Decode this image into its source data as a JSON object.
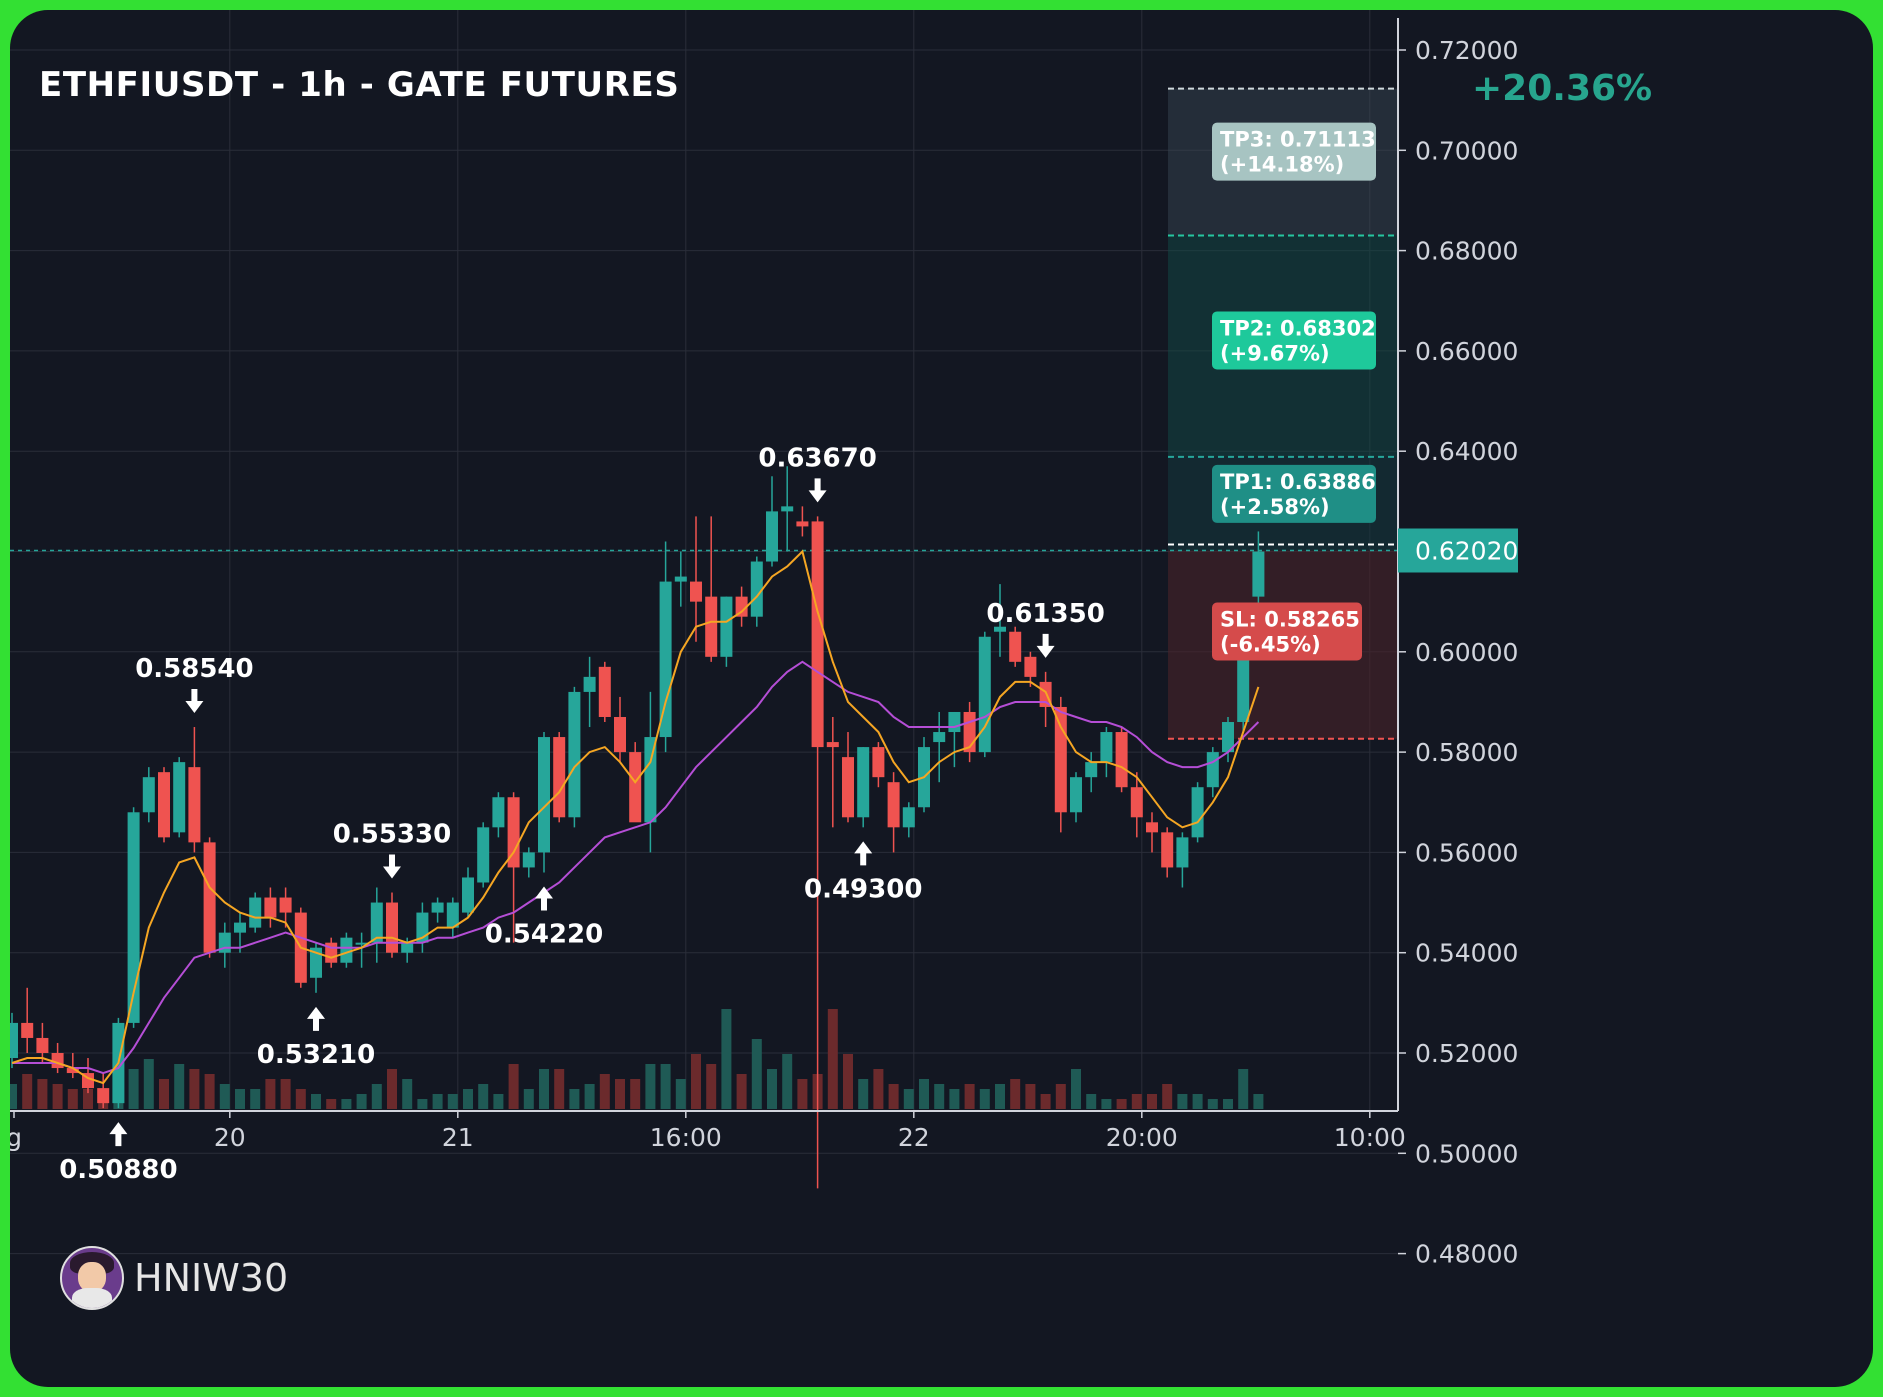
{
  "title": "ETHFIUSDT - 1h - GATE FUTURES",
  "total_gain": "+20.36%",
  "author": "HNIW30",
  "colors": {
    "background": "#131722",
    "frame": "#33e033",
    "up": "#26a69a",
    "down": "#ef5350",
    "ma_fast": "#f5a623",
    "ma_slow": "#b54ed6",
    "tp3_label": "#a7c4c2",
    "tp2_label": "#1ec99b",
    "tp1_label": "#1f8f86",
    "sl_label": "#d54b4b"
  },
  "current_price": "0.62020",
  "targets": [
    {
      "id": "tp3",
      "label": "TP3: 0.71113",
      "pct": "(+14.18%)",
      "price": 0.71113
    },
    {
      "id": "tp2",
      "label": "TP2: 0.68302",
      "pct": "(+9.67%)",
      "price": 0.68302
    },
    {
      "id": "tp1",
      "label": "TP1: 0.63886",
      "pct": "(+2.58%)",
      "price": 0.63886
    },
    {
      "id": "sl",
      "label": "SL: 0.58265",
      "pct": "(-6.45%)",
      "price": 0.58265
    }
  ],
  "chart_data": {
    "type": "candlestick",
    "title": "ETHFIUSDT - 1h - GATE FUTURES",
    "y_tick_labels": [
      "0.72000",
      "0.70000",
      "0.68000",
      "0.66000",
      "0.64000",
      "0.62000",
      "0.60000",
      "0.58000",
      "0.56000",
      "0.54000",
      "0.52000",
      "0.50000",
      "0.48000"
    ],
    "ylim": [
      0.472,
      0.726
    ],
    "x_tick_labels": [
      {
        "label": "g",
        "index": 0
      },
      {
        "label": "20",
        "index": 14
      },
      {
        "label": "21",
        "index": 29
      },
      {
        "label": "16:00",
        "index": 44
      },
      {
        "label": "22",
        "index": 59
      },
      {
        "label": "20:00",
        "index": 74
      },
      {
        "label": "10:00",
        "index": 89
      }
    ],
    "candles": [
      [
        0.519,
        0.528,
        0.517,
        0.526
      ],
      [
        0.526,
        0.533,
        0.52,
        0.523
      ],
      [
        0.523,
        0.526,
        0.518,
        0.52
      ],
      [
        0.52,
        0.522,
        0.516,
        0.517
      ],
      [
        0.517,
        0.52,
        0.515,
        0.516
      ],
      [
        0.516,
        0.519,
        0.512,
        0.513
      ],
      [
        0.513,
        0.516,
        0.509,
        0.51
      ],
      [
        0.51,
        0.527,
        0.509,
        0.526
      ],
      [
        0.526,
        0.569,
        0.525,
        0.568
      ],
      [
        0.568,
        0.577,
        0.566,
        0.575
      ],
      [
        0.576,
        0.577,
        0.562,
        0.563
      ],
      [
        0.564,
        0.579,
        0.563,
        0.578
      ],
      [
        0.577,
        0.585,
        0.56,
        0.562
      ],
      [
        0.562,
        0.563,
        0.539,
        0.54
      ],
      [
        0.54,
        0.546,
        0.537,
        0.544
      ],
      [
        0.544,
        0.548,
        0.54,
        0.546
      ],
      [
        0.545,
        0.552,
        0.544,
        0.551
      ],
      [
        0.551,
        0.553,
        0.545,
        0.547
      ],
      [
        0.551,
        0.553,
        0.545,
        0.548
      ],
      [
        0.548,
        0.549,
        0.533,
        0.534
      ],
      [
        0.535,
        0.542,
        0.532,
        0.541
      ],
      [
        0.542,
        0.543,
        0.537,
        0.538
      ],
      [
        0.538,
        0.544,
        0.537,
        0.543
      ],
      [
        0.542,
        0.544,
        0.537,
        0.542
      ],
      [
        0.542,
        0.553,
        0.538,
        0.55
      ],
      [
        0.55,
        0.552,
        0.539,
        0.54
      ],
      [
        0.54,
        0.543,
        0.538,
        0.542
      ],
      [
        0.542,
        0.55,
        0.54,
        0.548
      ],
      [
        0.548,
        0.551,
        0.546,
        0.55
      ],
      [
        0.545,
        0.551,
        0.543,
        0.55
      ],
      [
        0.548,
        0.557,
        0.547,
        0.555
      ],
      [
        0.554,
        0.566,
        0.553,
        0.565
      ],
      [
        0.565,
        0.572,
        0.563,
        0.571
      ],
      [
        0.571,
        0.572,
        0.542,
        0.557
      ],
      [
        0.557,
        0.561,
        0.555,
        0.56
      ],
      [
        0.56,
        0.584,
        0.556,
        0.583
      ],
      [
        0.583,
        0.584,
        0.566,
        0.567
      ],
      [
        0.567,
        0.593,
        0.565,
        0.592
      ],
      [
        0.592,
        0.599,
        0.585,
        0.595
      ],
      [
        0.597,
        0.598,
        0.586,
        0.587
      ],
      [
        0.587,
        0.591,
        0.578,
        0.58
      ],
      [
        0.58,
        0.582,
        0.567,
        0.566
      ],
      [
        0.566,
        0.592,
        0.56,
        0.583
      ],
      [
        0.583,
        0.622,
        0.58,
        0.614
      ],
      [
        0.614,
        0.62,
        0.609,
        0.615
      ],
      [
        0.614,
        0.627,
        0.602,
        0.61
      ],
      [
        0.611,
        0.627,
        0.598,
        0.599
      ],
      [
        0.599,
        0.611,
        0.597,
        0.611
      ],
      [
        0.611,
        0.613,
        0.605,
        0.607
      ],
      [
        0.607,
        0.619,
        0.605,
        0.618
      ],
      [
        0.618,
        0.635,
        0.617,
        0.628
      ],
      [
        0.628,
        0.637,
        0.62,
        0.629
      ],
      [
        0.626,
        0.629,
        0.623,
        0.625
      ],
      [
        0.626,
        0.627,
        0.493,
        0.581
      ],
      [
        0.582,
        0.587,
        0.565,
        0.581
      ],
      [
        0.579,
        0.584,
        0.566,
        0.567
      ],
      [
        0.567,
        0.581,
        0.565,
        0.581
      ],
      [
        0.581,
        0.582,
        0.573,
        0.575
      ],
      [
        0.574,
        0.576,
        0.56,
        0.565
      ],
      [
        0.565,
        0.57,
        0.563,
        0.569
      ],
      [
        0.569,
        0.583,
        0.568,
        0.581
      ],
      [
        0.582,
        0.588,
        0.574,
        0.584
      ],
      [
        0.584,
        0.588,
        0.577,
        0.588
      ],
      [
        0.588,
        0.59,
        0.578,
        0.58
      ],
      [
        0.58,
        0.604,
        0.579,
        0.603
      ],
      [
        0.604,
        0.6135,
        0.599,
        0.605
      ],
      [
        0.604,
        0.605,
        0.597,
        0.598
      ],
      [
        0.599,
        0.6,
        0.593,
        0.595
      ],
      [
        0.594,
        0.596,
        0.585,
        0.589
      ],
      [
        0.589,
        0.591,
        0.564,
        0.568
      ],
      [
        0.568,
        0.576,
        0.566,
        0.575
      ],
      [
        0.575,
        0.58,
        0.572,
        0.578
      ],
      [
        0.578,
        0.585,
        0.575,
        0.584
      ],
      [
        0.584,
        0.585,
        0.572,
        0.573
      ],
      [
        0.573,
        0.576,
        0.563,
        0.567
      ],
      [
        0.566,
        0.568,
        0.56,
        0.564
      ],
      [
        0.564,
        0.565,
        0.555,
        0.557
      ],
      [
        0.557,
        0.564,
        0.553,
        0.563
      ],
      [
        0.563,
        0.574,
        0.562,
        0.573
      ],
      [
        0.573,
        0.581,
        0.571,
        0.58
      ],
      [
        0.58,
        0.587,
        0.578,
        0.586
      ],
      [
        0.586,
        0.607,
        0.584,
        0.605
      ],
      [
        0.611,
        0.624,
        0.609,
        0.62
      ]
    ],
    "volume_rel": [
      0.25,
      0.35,
      0.3,
      0.25,
      0.2,
      0.2,
      0.15,
      0.35,
      0.4,
      0.5,
      0.3,
      0.45,
      0.4,
      0.35,
      0.25,
      0.2,
      0.2,
      0.3,
      0.3,
      0.2,
      0.15,
      0.1,
      0.1,
      0.15,
      0.25,
      0.4,
      0.3,
      0.1,
      0.15,
      0.15,
      0.2,
      0.25,
      0.15,
      0.45,
      0.2,
      0.4,
      0.4,
      0.2,
      0.25,
      0.35,
      0.3,
      0.3,
      0.45,
      0.45,
      0.3,
      0.55,
      0.45,
      1.0,
      0.35,
      0.7,
      0.4,
      0.55,
      0.3,
      0.35,
      1.0,
      0.55,
      0.3,
      0.4,
      0.25,
      0.2,
      0.3,
      0.25,
      0.2,
      0.25,
      0.2,
      0.25,
      0.3,
      0.25,
      0.15,
      0.25,
      0.4,
      0.15,
      0.1,
      0.1,
      0.15,
      0.15,
      0.25,
      0.15,
      0.15,
      0.1,
      0.1,
      0.4,
      0.15
    ],
    "ma_fast": [
      0.518,
      0.519,
      0.519,
      0.518,
      0.517,
      0.515,
      0.514,
      0.518,
      0.532,
      0.545,
      0.552,
      0.558,
      0.559,
      0.553,
      0.55,
      0.548,
      0.547,
      0.547,
      0.546,
      0.541,
      0.54,
      0.539,
      0.54,
      0.541,
      0.543,
      0.543,
      0.542,
      0.543,
      0.545,
      0.545,
      0.547,
      0.551,
      0.556,
      0.56,
      0.566,
      0.569,
      0.572,
      0.577,
      0.58,
      0.581,
      0.578,
      0.574,
      0.578,
      0.59,
      0.6,
      0.605,
      0.606,
      0.606,
      0.608,
      0.611,
      0.615,
      0.617,
      0.62,
      0.608,
      0.598,
      0.59,
      0.587,
      0.584,
      0.578,
      0.574,
      0.575,
      0.578,
      0.58,
      0.581,
      0.585,
      0.591,
      0.594,
      0.594,
      0.592,
      0.585,
      0.58,
      0.578,
      0.578,
      0.577,
      0.575,
      0.571,
      0.567,
      0.565,
      0.566,
      0.57,
      0.575,
      0.584,
      0.593
    ],
    "ma_slow": [
      0.518,
      0.518,
      0.518,
      0.518,
      0.517,
      0.517,
      0.516,
      0.517,
      0.521,
      0.526,
      0.531,
      0.535,
      0.539,
      0.54,
      0.541,
      0.541,
      0.542,
      0.543,
      0.544,
      0.543,
      0.542,
      0.541,
      0.541,
      0.541,
      0.542,
      0.542,
      0.542,
      0.542,
      0.543,
      0.543,
      0.544,
      0.545,
      0.547,
      0.548,
      0.55,
      0.552,
      0.554,
      0.557,
      0.56,
      0.563,
      0.564,
      0.565,
      0.566,
      0.569,
      0.573,
      0.577,
      0.58,
      0.583,
      0.586,
      0.589,
      0.593,
      0.596,
      0.598,
      0.596,
      0.594,
      0.592,
      0.591,
      0.59,
      0.587,
      0.585,
      0.585,
      0.585,
      0.585,
      0.586,
      0.587,
      0.589,
      0.59,
      0.59,
      0.59,
      0.588,
      0.587,
      0.586,
      0.586,
      0.585,
      0.583,
      0.58,
      0.578,
      0.577,
      0.577,
      0.578,
      0.58,
      0.583,
      0.586
    ],
    "annotations": [
      {
        "text": "0.58540",
        "index": 12,
        "dir": "high"
      },
      {
        "text": "0.50880",
        "index": 7,
        "dir": "low"
      },
      {
        "text": "0.53210",
        "index": 20,
        "dir": "low"
      },
      {
        "text": "0.55330",
        "index": 25,
        "dir": "high"
      },
      {
        "text": "0.54220",
        "index": 35,
        "dir": "low"
      },
      {
        "text": "0.63670",
        "index": 53,
        "dir": "high"
      },
      {
        "text": "0.49300",
        "index": 56,
        "dir": "low"
      },
      {
        "text": "0.61350",
        "index": 68,
        "dir": "high"
      }
    ]
  }
}
